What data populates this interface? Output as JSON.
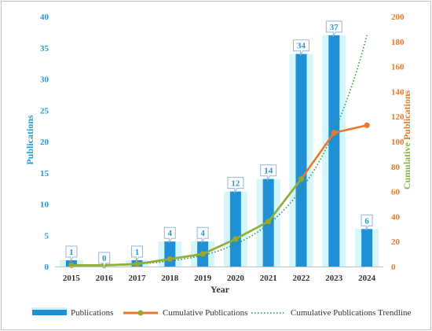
{
  "chart_data": {
    "type": "bar",
    "categories": [
      "2015",
      "2016",
      "2017",
      "2018",
      "2019",
      "2020",
      "2021",
      "2022",
      "2023",
      "2024"
    ],
    "series": [
      {
        "name": "Publications",
        "type": "bar",
        "axis": "left",
        "values": [
          1,
          0,
          1,
          4,
          4,
          12,
          14,
          34,
          37,
          6
        ]
      },
      {
        "name": "Cumulative Publications",
        "type": "line",
        "axis": "right",
        "values": [
          1,
          1,
          2,
          6,
          10,
          22,
          36,
          70,
          107,
          113
        ]
      },
      {
        "name": "Cumulative Publications Trendline",
        "type": "line",
        "style": "dotted",
        "axis": "right",
        "values": [
          0.3,
          0.8,
          2,
          4.5,
          9,
          18,
          34,
          62,
          108,
          185
        ]
      }
    ],
    "data_labels": [
      "1",
      "0",
      "1",
      "4",
      "4",
      "12",
      "14",
      "34",
      "37",
      "6"
    ],
    "xlabel": "Year",
    "ylabel": "Publications",
    "y2label": "Cumulative Publications",
    "ylim": [
      0,
      40
    ],
    "y2lim": [
      0,
      200
    ],
    "yticks": [
      "0",
      "5",
      "10",
      "15",
      "20",
      "25",
      "30",
      "35",
      "40"
    ],
    "y2ticks": [
      "0",
      "20",
      "40",
      "60",
      "80",
      "100",
      "120",
      "140",
      "160",
      "180",
      "200"
    ],
    "grid": false,
    "legend_position": "bottom",
    "colors": {
      "bar": "#1f8fd6",
      "bar_glow": "#cdf4fb",
      "line": "#e8782a",
      "line_green": "#8cb23a",
      "marker": "#9aa82a",
      "trend": "#2e9a3a"
    }
  }
}
